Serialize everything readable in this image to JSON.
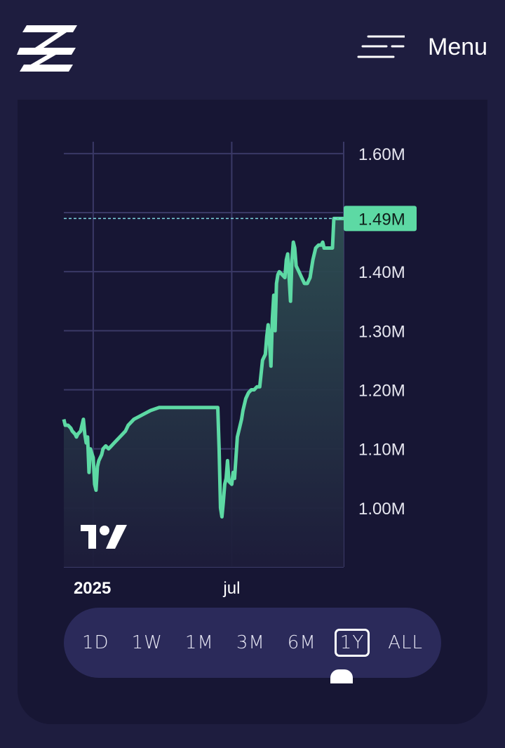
{
  "header": {
    "menu_label": "Menu"
  },
  "icons": {
    "logo": "brand-z-logo",
    "menu": "hamburger-icon",
    "watermark": "tradingview-logo"
  },
  "colors": {
    "line": "#5dd9a4",
    "price_label_bg": "#5dd9a4",
    "background": "#171634"
  },
  "range_selector": {
    "options": [
      "1D",
      "1W",
      "1M",
      "3M",
      "6M",
      "1Y",
      "ALL"
    ],
    "selected": "1Y"
  },
  "chart_data": {
    "type": "area",
    "x_ticks": [
      "2025",
      "jul"
    ],
    "y_ticks": [
      "1.60M",
      "1.49M",
      "1.40M",
      "1.30M",
      "1.20M",
      "1.10M",
      "1.00M"
    ],
    "y_tick_values": [
      1.6,
      1.49,
      1.4,
      1.3,
      1.2,
      1.1,
      1.0
    ],
    "current_value_label": "1.49M",
    "current_value": 1.49,
    "ylim": [
      0.9,
      1.62
    ],
    "xlim": [
      0,
      100
    ],
    "grid": true,
    "series": [
      {
        "points": [
          [
            0,
            1.15
          ],
          [
            0.5,
            1.14
          ],
          [
            1.5,
            1.14
          ],
          [
            2.5,
            1.135
          ],
          [
            3,
            1.13
          ],
          [
            4,
            1.125
          ],
          [
            4.5,
            1.12
          ],
          [
            5,
            1.125
          ],
          [
            6,
            1.13
          ],
          [
            7,
            1.15
          ],
          [
            7.5,
            1.125
          ],
          [
            8,
            1.11
          ],
          [
            8.5,
            1.12
          ],
          [
            9,
            1.06
          ],
          [
            9.5,
            1.1
          ],
          [
            10.5,
            1.085
          ],
          [
            11,
            1.04
          ],
          [
            11.5,
            1.03
          ],
          [
            12,
            1.07
          ],
          [
            12.5,
            1.08
          ],
          [
            13.5,
            1.09
          ],
          [
            14,
            1.1
          ],
          [
            15,
            1.105
          ],
          [
            16,
            1.1
          ],
          [
            17,
            1.105
          ],
          [
            18,
            1.11
          ],
          [
            19,
            1.115
          ],
          [
            20,
            1.12
          ],
          [
            21,
            1.125
          ],
          [
            22,
            1.13
          ],
          [
            23,
            1.14
          ],
          [
            25,
            1.15
          ],
          [
            27,
            1.155
          ],
          [
            29,
            1.16
          ],
          [
            31,
            1.165
          ],
          [
            34,
            1.17
          ],
          [
            45,
            1.17
          ],
          [
            55,
            1.17
          ],
          [
            55.5,
            1.1
          ],
          [
            56,
            1.0
          ],
          [
            56.5,
            0.985
          ],
          [
            57,
            1.01
          ],
          [
            57.5,
            1.04
          ],
          [
            58,
            1.05
          ],
          [
            58.5,
            1.08
          ],
          [
            59,
            1.045
          ],
          [
            60,
            1.04
          ],
          [
            60.5,
            1.06
          ],
          [
            61,
            1.05
          ],
          [
            62,
            1.12
          ],
          [
            63,
            1.14
          ],
          [
            63.5,
            1.15
          ],
          [
            64,
            1.165
          ],
          [
            65,
            1.185
          ],
          [
            66,
            1.195
          ],
          [
            67,
            1.2
          ],
          [
            68,
            1.2
          ],
          [
            69,
            1.205
          ],
          [
            70,
            1.205
          ],
          [
            71,
            1.25
          ],
          [
            72,
            1.26
          ],
          [
            72.5,
            1.29
          ],
          [
            73,
            1.31
          ],
          [
            73.5,
            1.28
          ],
          [
            74,
            1.24
          ],
          [
            74.5,
            1.32
          ],
          [
            75,
            1.36
          ],
          [
            75.5,
            1.3
          ],
          [
            76,
            1.38
          ],
          [
            76.5,
            1.395
          ],
          [
            77,
            1.4
          ],
          [
            78,
            1.395
          ],
          [
            79,
            1.39
          ],
          [
            79.5,
            1.42
          ],
          [
            80,
            1.43
          ],
          [
            81,
            1.35
          ],
          [
            81.5,
            1.42
          ],
          [
            82,
            1.45
          ],
          [
            82.5,
            1.44
          ],
          [
            83,
            1.41
          ],
          [
            84,
            1.4
          ],
          [
            85,
            1.39
          ],
          [
            86,
            1.38
          ],
          [
            87,
            1.38
          ],
          [
            88,
            1.39
          ],
          [
            89,
            1.42
          ],
          [
            90,
            1.44
          ],
          [
            91,
            1.445
          ],
          [
            92,
            1.445
          ],
          [
            92.5,
            1.45
          ],
          [
            93,
            1.44
          ],
          [
            94,
            1.44
          ],
          [
            95,
            1.44
          ],
          [
            96,
            1.44
          ],
          [
            96.5,
            1.49
          ],
          [
            100,
            1.49
          ]
        ]
      }
    ]
  }
}
